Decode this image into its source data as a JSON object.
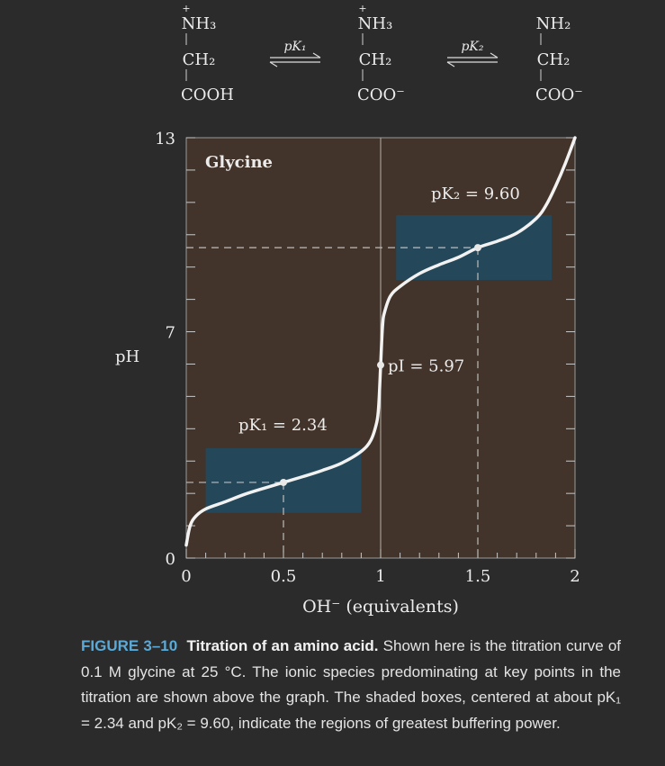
{
  "chart_data": {
    "type": "line",
    "title": "Glycine",
    "xlabel": "OH⁻ (equivalents)",
    "ylabel": "pH",
    "xlim": [
      0,
      2
    ],
    "ylim": [
      0,
      13
    ],
    "x_ticks": [
      "0",
      "0.5",
      "1",
      "1.5",
      "2"
    ],
    "y_ticks": [
      "0",
      "7",
      "13"
    ],
    "species": [
      {
        "top": "NH₃",
        "top_charge": "+",
        "mid": "CH₂",
        "bottom": "COOH"
      },
      {
        "top": "NH₃",
        "top_charge": "+",
        "mid": "CH₂",
        "bottom": "COO⁻"
      },
      {
        "top": "NH₂",
        "top_charge": "",
        "mid": "CH₂",
        "bottom": "COO⁻"
      }
    ],
    "equilibria": [
      "pK₁",
      "pK₂"
    ],
    "buffer_boxes": [
      {
        "x": [
          0.1,
          0.9
        ],
        "y": [
          1.4,
          3.4
        ]
      },
      {
        "x": [
          1.08,
          1.88
        ],
        "y": [
          8.6,
          10.6
        ]
      }
    ],
    "annotations": [
      {
        "text": "pK₁ = 2.34",
        "x": 0.5,
        "y": 2.34
      },
      {
        "text": "pI = 5.97",
        "x": 1.0,
        "y": 5.97
      },
      {
        "text": "pK₂ = 9.60",
        "x": 1.5,
        "y": 9.6
      }
    ],
    "series": [
      {
        "x": [
          0,
          0.02,
          0.05,
          0.1,
          0.2,
          0.3,
          0.4,
          0.5,
          0.6,
          0.7,
          0.8,
          0.9,
          0.95,
          0.98,
          0.99,
          1.0,
          1.01,
          1.02,
          1.05,
          1.1,
          1.2,
          1.3,
          1.4,
          1.5,
          1.6,
          1.7,
          1.8,
          1.85,
          1.9,
          1.95,
          2.0
        ],
        "y": [
          0.4,
          1.0,
          1.3,
          1.52,
          1.74,
          1.97,
          2.16,
          2.34,
          2.52,
          2.71,
          2.94,
          3.3,
          3.65,
          4.2,
          4.7,
          5.97,
          7.2,
          7.6,
          8.1,
          8.4,
          8.8,
          9.07,
          9.3,
          9.6,
          9.8,
          10.05,
          10.5,
          10.9,
          11.5,
          12.2,
          13.0
        ]
      }
    ]
  },
  "caption": {
    "figure_number": "FIGURE 3–10",
    "figure_title": "Titration of an amino acid.",
    "text": "Shown here is the titration curve of 0.1 M glycine at 25 °C. The ionic species predominating at key points in the titration are shown above the graph. The shaded boxes, centered at about pK₁ = 2.34 and pK₂ = 9.60, indicate the regions of greatest buffering power."
  }
}
